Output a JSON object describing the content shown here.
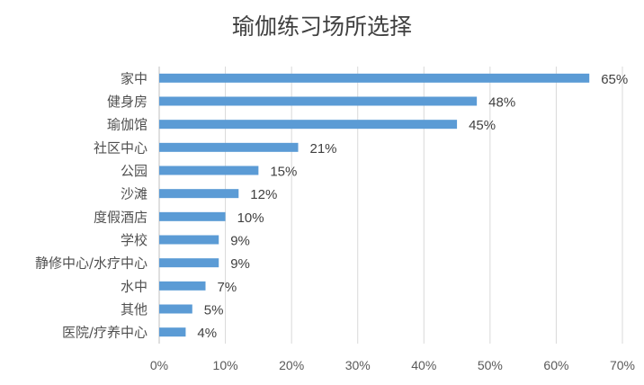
{
  "chart_data": {
    "type": "bar",
    "orientation": "horizontal",
    "title": "瑜伽练习场所选择",
    "xlabel": "",
    "ylabel": "",
    "categories": [
      "家中",
      "健身房",
      "瑜伽馆",
      "社区中心",
      "公园",
      "沙滩",
      "度假酒店",
      "学校",
      "静修中心/水疗中心",
      "水中",
      "其他",
      "医院/疗养中心"
    ],
    "values": [
      65,
      48,
      45,
      21,
      15,
      12,
      10,
      9,
      9,
      7,
      5,
      4
    ],
    "value_labels": [
      "65%",
      "48%",
      "45%",
      "21%",
      "15%",
      "12%",
      "10%",
      "9%",
      "9%",
      "7%",
      "5%",
      "4%"
    ],
    "xlim": [
      0,
      70
    ],
    "x_ticks": [
      "0%",
      "10%",
      "20%",
      "30%",
      "40%",
      "50%",
      "60%",
      "70%"
    ],
    "grid": "vertical",
    "bar_color": "#5b9bd5"
  }
}
